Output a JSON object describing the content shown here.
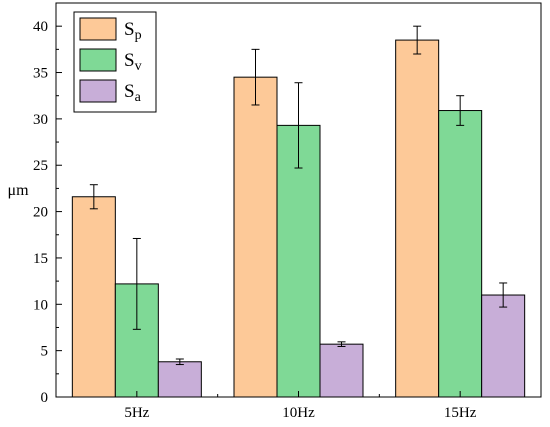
{
  "chart_data": {
    "type": "bar",
    "title": "",
    "xlabel": "",
    "ylabel": "μm",
    "ylim": [
      0,
      42.5
    ],
    "yticks": [
      0,
      5,
      10,
      15,
      20,
      25,
      30,
      35,
      40
    ],
    "categories": [
      "5Hz",
      "10Hz",
      "15Hz"
    ],
    "legend_position": "top-left",
    "grid": false,
    "series": [
      {
        "name": "S",
        "subscript": "p",
        "color": "#fdc998",
        "values": [
          21.6,
          34.5,
          38.5
        ],
        "errors": [
          1.3,
          3.0,
          1.5
        ]
      },
      {
        "name": "S",
        "subscript": "v",
        "color": "#7fd996",
        "values": [
          12.2,
          29.3,
          30.9
        ],
        "errors": [
          4.9,
          4.6,
          1.6
        ]
      },
      {
        "name": "S",
        "subscript": "a",
        "color": "#c8aed8",
        "values": [
          3.8,
          5.7,
          11.0
        ],
        "errors": [
          0.3,
          0.25,
          1.3
        ]
      }
    ]
  }
}
